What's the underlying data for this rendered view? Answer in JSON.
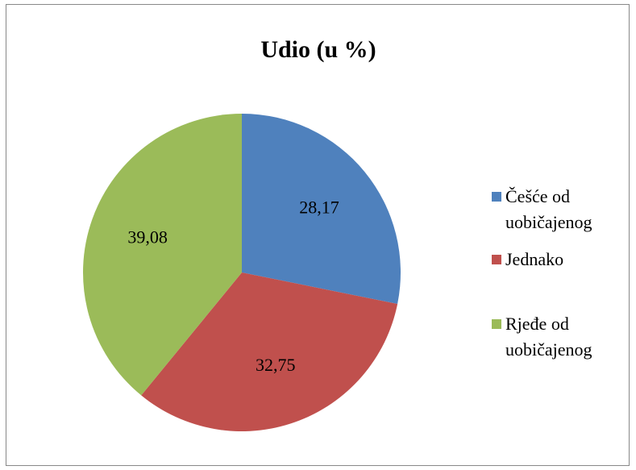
{
  "chart_data": {
    "type": "pie",
    "title": "Udio (u %)",
    "categories": [
      "Češće od uobičajenog",
      "Jednako",
      "Rjeđe od uobičajenog"
    ],
    "values": [
      28.17,
      32.75,
      39.08
    ],
    "value_labels": [
      "28,17",
      "32,75",
      "39,08"
    ],
    "colors": [
      "#4f81bd",
      "#c0504d",
      "#9bbb59"
    ],
    "legend": "right"
  }
}
